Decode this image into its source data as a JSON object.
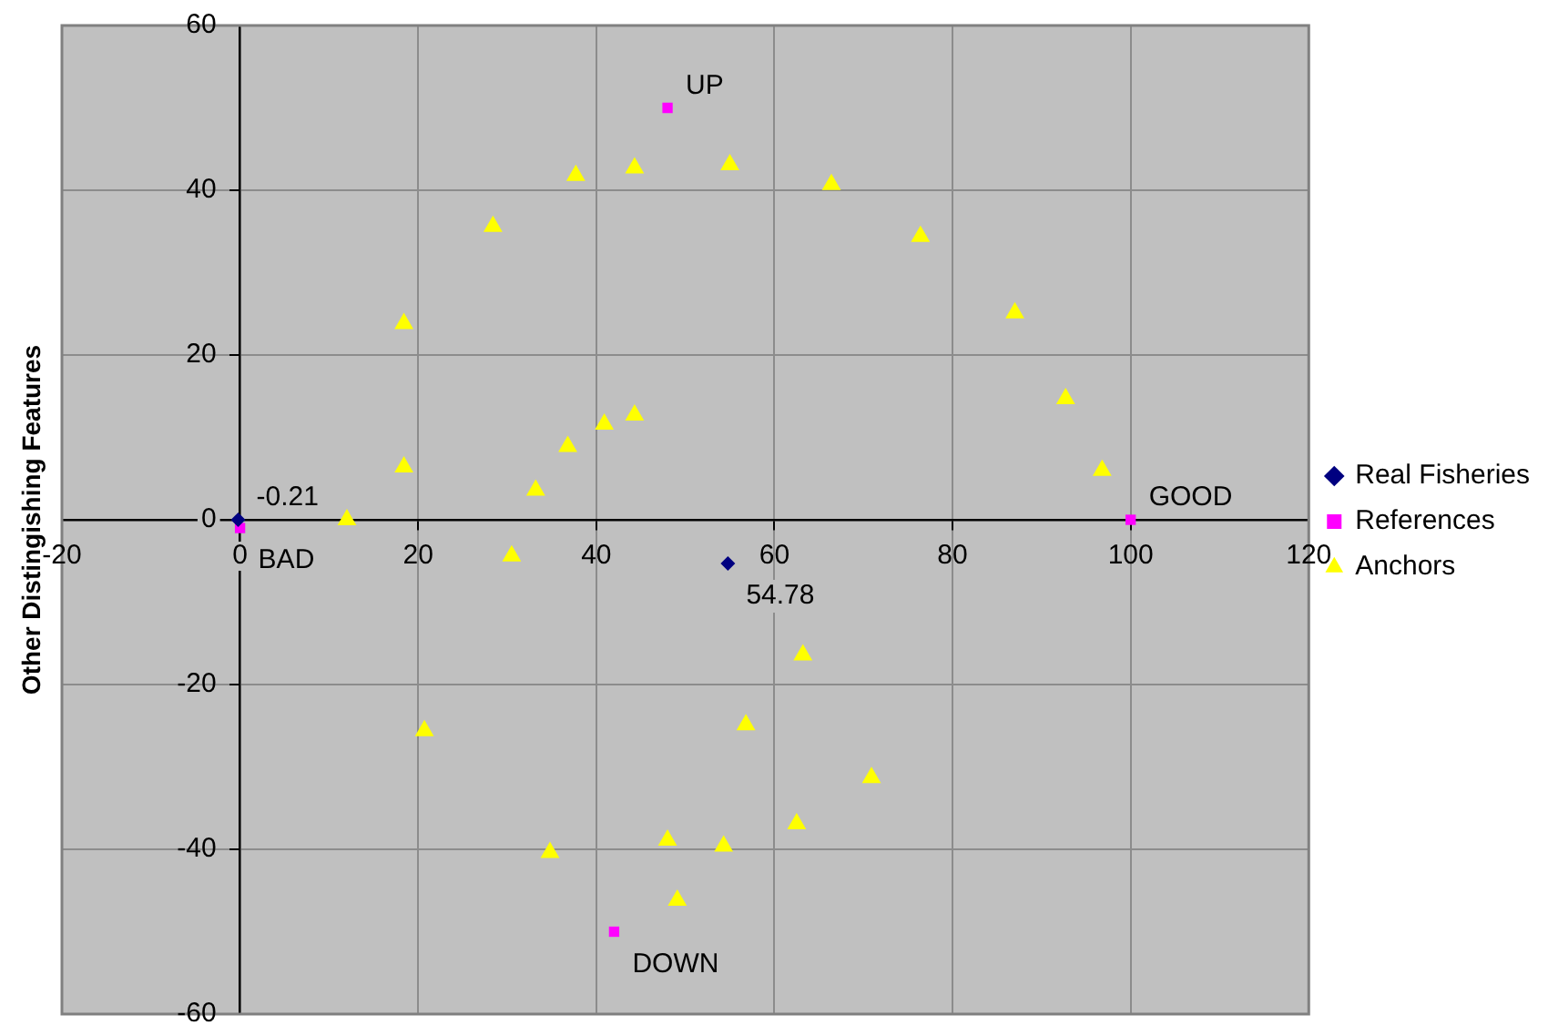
{
  "chart_data": {
    "type": "scatter",
    "ylabel": "Other Distingishing Features",
    "xlim": [
      -20,
      120
    ],
    "xticks": [
      -20,
      0,
      20,
      40,
      60,
      80,
      100,
      120
    ],
    "ylim": [
      -60,
      60
    ],
    "yticks": [
      -60,
      -40,
      -20,
      0,
      20,
      40,
      60
    ],
    "grid": true,
    "legend": "right",
    "annotations": [
      {
        "text": "-0.21",
        "x": -0.21,
        "y": 0
      },
      {
        "text": "54.78",
        "x": 54.78,
        "y": -5.3
      },
      {
        "text": "BAD",
        "x": 0,
        "y": -1
      },
      {
        "text": "UP",
        "x": 48,
        "y": 50
      },
      {
        "text": "GOOD",
        "x": 100,
        "y": 0
      },
      {
        "text": "DOWN",
        "x": 42,
        "y": -50
      }
    ],
    "series": [
      {
        "name": "Real Fisheries",
        "color": "#000080",
        "marker": "diamond",
        "x": [
          -0.21,
          54.78
        ],
        "values": [
          0,
          -5.3
        ]
      },
      {
        "name": "References",
        "color": "#ff00ff",
        "marker": "square",
        "x": [
          0,
          48,
          100,
          42
        ],
        "values": [
          -1,
          50,
          0,
          -50
        ]
      },
      {
        "name": "Anchors",
        "color": "#ffff00",
        "marker": "triangle",
        "x": [
          12,
          18.4,
          18.4,
          28.4,
          37.7,
          44.3,
          55,
          66.4,
          76.4,
          87,
          92.7,
          96.8,
          33.2,
          36.8,
          40.9,
          44.3,
          30.5,
          20.7,
          34.8,
          48,
          49.1,
          54.3,
          56.8,
          63.2,
          62.5,
          70.9
        ],
        "values": [
          0,
          6.4,
          23.8,
          35.6,
          41.8,
          42.7,
          43.1,
          40.7,
          34.4,
          25.1,
          14.7,
          6,
          3.6,
          8.9,
          11.6,
          12.7,
          -4.4,
          -25.6,
          -40.4,
          -38.9,
          -46.2,
          -39.6,
          -24.9,
          -16.4,
          -36.9,
          -31.3
        ]
      }
    ]
  }
}
